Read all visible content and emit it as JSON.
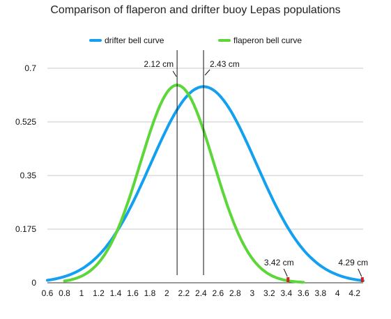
{
  "chart_data": {
    "type": "line",
    "title": "Comparison of flaperon and drifter buoy Lepas populations",
    "xlabel": "",
    "ylabel": "",
    "xlim": [
      0.6,
      4.3
    ],
    "ylim": [
      0,
      0.7
    ],
    "xticks": [
      "0.6",
      "0.8",
      "1",
      "1.2",
      "1.4",
      "1.6",
      "1.8",
      "2",
      "2.2",
      "2.4",
      "2.6",
      "2.8",
      "3",
      "3.2",
      "3.4",
      "3.6",
      "3.8",
      "4",
      "4.2"
    ],
    "yticks": [
      "0",
      "0.175",
      "0.35",
      "0.525",
      "0.7"
    ],
    "grid": "horizontal",
    "legend": "top-center",
    "series": [
      {
        "name": "drifter bell curve",
        "color": "#14a0f0",
        "mean": 2.43,
        "sd": 0.62,
        "peak": 0.64,
        "x_start": 0.6,
        "x_end": 4.3
      },
      {
        "name": "flaperon bell curve",
        "color": "#5dd63a",
        "mean": 2.12,
        "sd": 0.43,
        "peak": 0.645,
        "x_start": 0.8,
        "x_end": 3.6
      }
    ],
    "annotations": [
      {
        "text": "2.12 cm",
        "x": 2.12,
        "kind": "vline"
      },
      {
        "text": "2.43 cm",
        "x": 2.43,
        "kind": "vline"
      },
      {
        "text": "3.42 cm",
        "x": 3.42,
        "kind": "marker",
        "marker_color": "#d02020"
      },
      {
        "text": "4.29 cm",
        "x": 4.29,
        "kind": "marker",
        "marker_color": "#d02020"
      }
    ]
  }
}
